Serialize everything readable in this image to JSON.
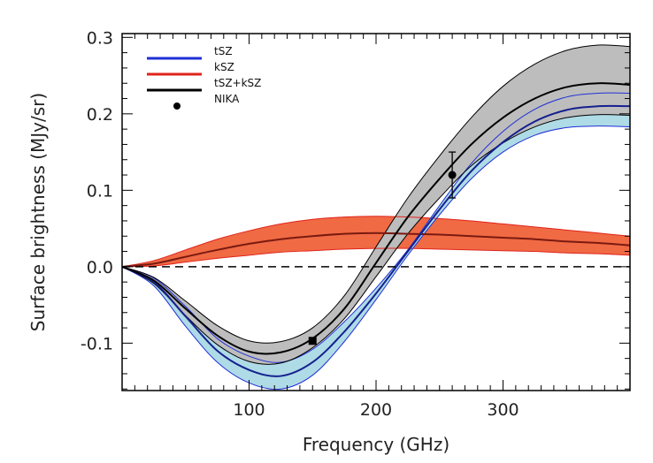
{
  "chart_data": {
    "type": "line",
    "xlabel": "Frequency (GHz)",
    "ylabel": "Surface brightness (MJy/sr)",
    "xlim": [
      0,
      400
    ],
    "ylim": [
      -0.162,
      0.305
    ],
    "x_ticks": [
      100,
      200,
      300
    ],
    "x_tick_labels": [
      "100",
      "200",
      "300"
    ],
    "y_ticks": [
      -0.1,
      0.0,
      0.1,
      0.2,
      0.3
    ],
    "y_tick_labels": [
      "-0.1",
      "0.0",
      "0.1",
      "0.2",
      "0.3"
    ],
    "legend_position": "top-left",
    "legend": [
      {
        "label": "tSZ",
        "color": "#1f2fd6",
        "marker": "line"
      },
      {
        "label": "kSZ",
        "color": "#e0241b",
        "marker": "line"
      },
      {
        "label": "tSZ+kSZ",
        "color": "#000000",
        "marker": "line"
      },
      {
        "label": "NIKA",
        "color": "#000000",
        "marker": "dot"
      }
    ],
    "series": [
      {
        "name": "tSZ",
        "color": "#1f2fd6",
        "band_fill": "#aedbe6",
        "x": [
          0,
          25,
          50,
          75,
          100,
          125,
          150,
          175,
          200,
          225,
          250,
          275,
          300,
          325,
          350,
          375,
          400
        ],
        "center": [
          0,
          -0.02,
          -0.065,
          -0.11,
          -0.135,
          -0.143,
          -0.125,
          -0.085,
          -0.035,
          0.02,
          0.075,
          0.125,
          0.163,
          0.19,
          0.205,
          0.21,
          0.21
        ],
        "upper": [
          0,
          -0.015,
          -0.052,
          -0.094,
          -0.117,
          -0.125,
          -0.108,
          -0.072,
          -0.028,
          0.022,
          0.08,
          0.135,
          0.177,
          0.206,
          0.222,
          0.227,
          0.227
        ],
        "lower": [
          0,
          -0.025,
          -0.078,
          -0.125,
          -0.152,
          -0.16,
          -0.142,
          -0.098,
          -0.043,
          0.015,
          0.068,
          0.115,
          0.15,
          0.172,
          0.182,
          0.184,
          0.183
        ]
      },
      {
        "name": "kSZ",
        "color": "#e0241b",
        "band_fill": "#f06a44",
        "x": [
          0,
          25,
          50,
          75,
          100,
          125,
          150,
          175,
          200,
          225,
          250,
          275,
          300,
          325,
          350,
          375,
          400
        ],
        "center": [
          0,
          0.004,
          0.013,
          0.022,
          0.03,
          0.036,
          0.04,
          0.043,
          0.044,
          0.043,
          0.042,
          0.04,
          0.038,
          0.036,
          0.033,
          0.031,
          0.028
        ],
        "upper": [
          0,
          0.008,
          0.022,
          0.036,
          0.047,
          0.056,
          0.062,
          0.065,
          0.066,
          0.065,
          0.063,
          0.06,
          0.056,
          0.052,
          0.048,
          0.044,
          0.04
        ],
        "lower": [
          0,
          0.001,
          0.006,
          0.011,
          0.015,
          0.019,
          0.021,
          0.023,
          0.024,
          0.024,
          0.023,
          0.022,
          0.021,
          0.02,
          0.018,
          0.017,
          0.015
        ]
      },
      {
        "name": "tSZ+kSZ",
        "color": "#000000",
        "band_fill": "#bdbdbd",
        "x": [
          0,
          25,
          50,
          75,
          100,
          125,
          150,
          175,
          200,
          225,
          250,
          275,
          300,
          325,
          350,
          375,
          400
        ],
        "center": [
          0,
          -0.018,
          -0.055,
          -0.09,
          -0.111,
          -0.112,
          -0.094,
          -0.055,
          0.005,
          0.065,
          0.115,
          0.16,
          0.195,
          0.22,
          0.235,
          0.24,
          0.238
        ],
        "upper": [
          0,
          -0.014,
          -0.045,
          -0.077,
          -0.097,
          -0.098,
          -0.08,
          -0.038,
          0.026,
          0.09,
          0.145,
          0.195,
          0.236,
          0.265,
          0.283,
          0.29,
          0.288
        ],
        "lower": [
          0,
          -0.022,
          -0.064,
          -0.102,
          -0.124,
          -0.126,
          -0.106,
          -0.068,
          -0.013,
          0.043,
          0.09,
          0.132,
          0.162,
          0.183,
          0.195,
          0.199,
          0.198
        ]
      }
    ],
    "nika_points": [
      {
        "x": 150,
        "y": -0.097,
        "err": 0.004,
        "marker": "square"
      },
      {
        "x": 260,
        "y": 0.12,
        "err": 0.03,
        "marker": "dot"
      }
    ],
    "zero_line": {
      "y": 0,
      "style": "dashed"
    }
  }
}
